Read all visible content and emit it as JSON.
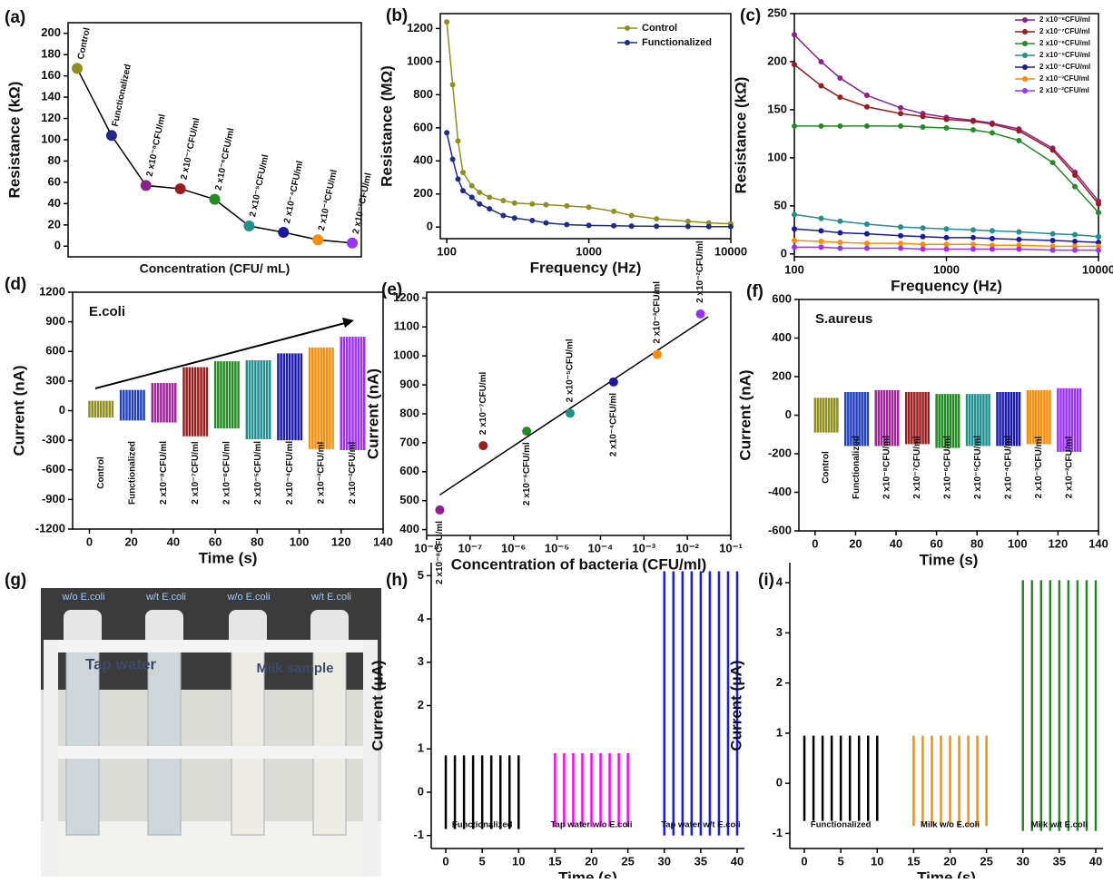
{
  "chart_data": [
    {
      "type": "line",
      "label": "(a)",
      "x_label": "Concentration (CFU/ mL)",
      "y_label": "Resistance (kΩ)",
      "categories": [
        "Control",
        "Functionalized",
        "2 x10⁻⁸CFU/ml",
        "2 x10⁻⁷CFU/ml",
        "2 x10⁻⁶CFU/ml",
        "2 x10⁻⁵CFU/ml",
        "2 x10⁻⁴CFU/ml",
        "2 x10⁻³CFU/ml",
        "2 x10⁻²CFU/ml"
      ],
      "values": [
        167,
        104,
        57,
        54,
        44,
        19,
        13,
        6,
        3
      ],
      "colors": [
        "#8f8f1f",
        "#1f2a8f",
        "#8e1f8e",
        "#9b1c1c",
        "#238b23",
        "#1f8f8f",
        "#1a1aa0",
        "#ff8c00",
        "#9b30ff"
      ],
      "line_color": "#000000",
      "ylim": [
        -10,
        210
      ],
      "yticks": [
        0,
        20,
        40,
        60,
        80,
        100,
        120,
        140,
        160,
        180,
        200
      ]
    },
    {
      "type": "line",
      "label": "(b)",
      "x_label": "Frequency (Hz)",
      "y_label": "Resistance (MΩ)",
      "x_log": true,
      "x": [
        100,
        110,
        120,
        130,
        150,
        170,
        200,
        250,
        300,
        400,
        500,
        700,
        1000,
        1500,
        2000,
        3000,
        5000,
        7000,
        10000
      ],
      "series": [
        {
          "name": "Control",
          "color": "#8f8f1f",
          "values": [
            1240,
            860,
            520,
            330,
            250,
            210,
            180,
            160,
            145,
            140,
            135,
            128,
            120,
            95,
            70,
            50,
            35,
            25,
            20
          ]
        },
        {
          "name": "Functionalized",
          "color": "#1f2a8f",
          "values": [
            570,
            410,
            290,
            220,
            180,
            140,
            110,
            70,
            55,
            40,
            25,
            15,
            10,
            8,
            6,
            5,
            4,
            3,
            3
          ]
        }
      ],
      "xlim": [
        90,
        10000
      ],
      "xticks": [
        100,
        1000,
        10000
      ],
      "ylim": [
        -70,
        1290
      ],
      "yticks": [
        0,
        200,
        400,
        600,
        800,
        1000,
        1200
      ],
      "legend": "upper right"
    },
    {
      "type": "line",
      "label": "(c)",
      "x_label": "Frequency (Hz)",
      "y_label": "Resistance (kΩ)",
      "x_log": true,
      "x": [
        100,
        150,
        200,
        300,
        500,
        700,
        1000,
        1500,
        2000,
        3000,
        5000,
        7000,
        10000
      ],
      "series": [
        {
          "name": "2 x10⁻⁸CFU/ml",
          "color": "#8e1f8e",
          "values": [
            228,
            200,
            183,
            165,
            152,
            146,
            142,
            139,
            136,
            130,
            110,
            85,
            55
          ]
        },
        {
          "name": "2 x10⁻⁷CFU/ml",
          "color": "#9b1c1c",
          "values": [
            197,
            175,
            163,
            153,
            146,
            143,
            140,
            138,
            135,
            128,
            108,
            82,
            52
          ]
        },
        {
          "name": "2 x10⁻⁶CFU/ml",
          "color": "#238b23",
          "values": [
            133,
            133,
            133,
            133,
            133,
            132,
            131,
            129,
            126,
            118,
            95,
            70,
            43
          ]
        },
        {
          "name": "2 x10⁻⁵CFU/ml",
          "color": "#1f8f8f",
          "values": [
            41,
            37,
            34,
            31,
            28,
            27,
            26,
            25,
            24,
            23,
            21,
            20,
            18
          ]
        },
        {
          "name": "2 x10⁻⁴CFU/ml",
          "color": "#1a1aa0",
          "values": [
            26,
            24,
            22,
            21,
            19,
            18,
            17,
            17,
            16,
            15,
            14,
            13,
            12
          ]
        },
        {
          "name": "2 x10⁻³CFU/ml",
          "color": "#ff8c00",
          "values": [
            14,
            13,
            12,
            11,
            11,
            10,
            10,
            10,
            9,
            9,
            8,
            8,
            8
          ]
        },
        {
          "name": "2 x10⁻²CFU/ml",
          "color": "#9b30ff",
          "values": [
            7,
            7,
            6,
            6,
            6,
            5,
            5,
            5,
            5,
            5,
            4,
            4,
            4
          ]
        }
      ],
      "xlim": [
        100,
        10000
      ],
      "xticks": [
        100,
        1000,
        10000
      ],
      "ylim": [
        -3,
        250
      ],
      "yticks": [
        0,
        50,
        100,
        150,
        200,
        250
      ],
      "legend": "upper right"
    },
    {
      "type": "oscillation",
      "label": "(d)",
      "annotation": "E.coli",
      "x_label": "Time (s)",
      "y_label": "Current (nA)",
      "bursts": [
        {
          "name": "Control",
          "color": "#8f8f1f",
          "x": [
            0,
            11
          ],
          "max": 100,
          "min": -70
        },
        {
          "name": "Functionalized",
          "color": "#1f3fbf",
          "x": [
            15,
            26
          ],
          "max": 210,
          "min": -100
        },
        {
          "name": "2 x10⁻⁸CFU/ml",
          "color": "#a0279a",
          "x": [
            30,
            41
          ],
          "max": 280,
          "min": -120
        },
        {
          "name": "2 x10⁻⁷CFU/ml",
          "color": "#9b1c1c",
          "x": [
            45,
            56
          ],
          "max": 440,
          "min": -260
        },
        {
          "name": "2 x10⁻⁶CFU/ml",
          "color": "#238b23",
          "x": [
            60,
            71
          ],
          "max": 500,
          "min": -180
        },
        {
          "name": "2 x10⁻⁵CFU/ml",
          "color": "#1f8f8f",
          "x": [
            75,
            86
          ],
          "max": 510,
          "min": -290
        },
        {
          "name": "2 x10⁻⁴CFU/ml",
          "color": "#1a1ab0",
          "x": [
            90,
            101
          ],
          "max": 580,
          "min": -300
        },
        {
          "name": "2 x10⁻³CFU/ml",
          "color": "#ff8c00",
          "x": [
            105,
            116
          ],
          "max": 640,
          "min": -390
        },
        {
          "name": "2 x10⁻²CFU/ml",
          "color": "#9b30ff",
          "x": [
            120,
            131
          ],
          "max": 750,
          "min": -400
        }
      ],
      "xlim": [
        -8,
        140
      ],
      "xticks": [
        0,
        20,
        40,
        60,
        80,
        100,
        120,
        140
      ],
      "ylim": [
        -1200,
        1200
      ],
      "yticks": [
        -1200,
        -900,
        -600,
        -300,
        0,
        300,
        600,
        900,
        1200
      ]
    },
    {
      "type": "scatter",
      "label": "(e)",
      "x_label": "Concentration of bacteria (CFU/ml)",
      "y_label": "Current (nA)",
      "x_log": true,
      "x": [
        2e-08,
        2e-07,
        2e-06,
        2e-05,
        0.0002,
        0.002,
        0.02
      ],
      "values": [
        468,
        690,
        740,
        802,
        910,
        1005,
        1145
      ],
      "point_labels": [
        "2 x10⁻⁸CFU/ml",
        "2 x10⁻⁷CFU/ml",
        "2 x10⁻⁶CFU/ml",
        "2 x10⁻⁵CFU/ml",
        "2 x10⁻⁴CFU/ml",
        "2 x10⁻³CFU/ml",
        "2 x10⁻²CFU/ml"
      ],
      "colors": [
        "#8e1f8e",
        "#9b1c1c",
        "#238b23",
        "#1f8f8f",
        "#1a1aa0",
        "#ff8c00",
        "#9b30ff"
      ],
      "fit": {
        "x": [
          2e-08,
          0.03
        ],
        "values": [
          520,
          1135
        ]
      },
      "xlim": [
        1e-08,
        0.1
      ],
      "xticks": [
        {
          "value": 1e-08,
          "label": "10⁻⁸"
        },
        {
          "value": 1e-07,
          "label": "10⁻⁷"
        },
        {
          "value": 1e-06,
          "label": "10⁻⁶"
        },
        {
          "value": 1e-05,
          "label": "10⁻⁵"
        },
        {
          "value": 0.0001,
          "label": "10⁻⁴"
        },
        {
          "value": 0.001,
          "label": "10⁻³"
        },
        {
          "value": 0.01,
          "label": "10⁻²"
        },
        {
          "value": 0.1,
          "label": "10⁻¹"
        }
      ],
      "ylim": [
        380,
        1220
      ],
      "yticks": [
        400,
        500,
        600,
        700,
        800,
        900,
        1000,
        1100,
        1200
      ]
    },
    {
      "type": "oscillation",
      "label": "(f)",
      "annotation": "S.aureus",
      "x_label": "Time (s)",
      "y_label": "Current (nA)",
      "bursts": [
        {
          "name": "Control",
          "color": "#8f8f1f",
          "x": [
            0,
            11
          ],
          "max": 90,
          "min": -90
        },
        {
          "name": "Functionalized",
          "color": "#1f3fbf",
          "x": [
            15,
            26
          ],
          "max": 120,
          "min": -160
        },
        {
          "name": "2 x10⁻⁸CFU/ml",
          "color": "#a0279a",
          "x": [
            30,
            41
          ],
          "max": 130,
          "min": -160
        },
        {
          "name": "2 x10⁻⁷CFU/ml",
          "color": "#9b1c1c",
          "x": [
            45,
            56
          ],
          "max": 120,
          "min": -150
        },
        {
          "name": "2 x10⁻⁶CFU/ml",
          "color": "#238b23",
          "x": [
            60,
            71
          ],
          "max": 110,
          "min": -170
        },
        {
          "name": "2 x10⁻⁵CFU/ml",
          "color": "#1f8f8f",
          "x": [
            75,
            86
          ],
          "max": 110,
          "min": -160
        },
        {
          "name": "2 x10⁻⁴CFU/ml",
          "color": "#1a1ab0",
          "x": [
            90,
            101
          ],
          "max": 120,
          "min": -160
        },
        {
          "name": "2 x10⁻³CFU/ml",
          "color": "#ff8c00",
          "x": [
            105,
            116
          ],
          "max": 130,
          "min": -150
        },
        {
          "name": "2 x10⁻²CFU/ml",
          "color": "#9b30ff",
          "x": [
            120,
            131
          ],
          "max": 140,
          "min": -190
        }
      ],
      "xlim": [
        -8,
        140
      ],
      "xticks": [
        0,
        20,
        40,
        60,
        80,
        100,
        120,
        140
      ],
      "ylim": [
        -600,
        600
      ],
      "yticks": [
        -600,
        -400,
        -200,
        0,
        200,
        400,
        600
      ]
    },
    {
      "type": "oscillation",
      "label": "(h)",
      "x_label": "Time (s)",
      "y_label": "Current (μA)",
      "bursts": [
        {
          "name": "Functionalized",
          "color": "#000000",
          "x": [
            0,
            10
          ],
          "max": 0.85,
          "min": -0.85
        },
        {
          "name": "Tap water w/o E.coli",
          "color": "#ff00ff",
          "x": [
            15,
            25
          ],
          "max": 0.9,
          "min": -0.8
        },
        {
          "name": "Tap water w/t E.coli",
          "color": "#1a1aff",
          "x": [
            30,
            40
          ],
          "max": 5.1,
          "min": -1.0
        }
      ],
      "xlim": [
        -2,
        41
      ],
      "xticks": [
        0,
        5,
        10,
        15,
        20,
        25,
        30,
        35,
        40
      ],
      "ylim": [
        -1.3,
        5.3
      ],
      "yticks": [
        -1,
        0,
        1,
        2,
        3,
        4,
        5
      ]
    },
    {
      "type": "oscillation",
      "label": "(i)",
      "x_label": "Time (s)",
      "y_label": "Current (μA)",
      "bursts": [
        {
          "name": "Functionalized",
          "color": "#000000",
          "x": [
            0,
            10
          ],
          "max": 0.95,
          "min": -0.75
        },
        {
          "name": "Milk w/o E.coli",
          "color": "#ff8c00",
          "x": [
            15,
            25
          ],
          "max": 0.95,
          "min": -0.85
        },
        {
          "name": "Milk w/t E.coli",
          "color": "#228b22",
          "x": [
            30,
            40
          ],
          "max": 4.05,
          "min": -0.95
        }
      ],
      "xlim": [
        -2,
        41
      ],
      "xticks": [
        0,
        5,
        10,
        15,
        20,
        25,
        30,
        35,
        40
      ],
      "ylim": [
        -1.3,
        4.4
      ],
      "yticks": [
        -1,
        0,
        1,
        2,
        3,
        4
      ]
    }
  ],
  "photo": {
    "label": "(g)",
    "tubes": [
      "w/o E.coli",
      "w/t E.coli",
      "w/o E.coli",
      "w/t E.coli"
    ],
    "groups": [
      "Tap water",
      "Milk sample"
    ]
  }
}
